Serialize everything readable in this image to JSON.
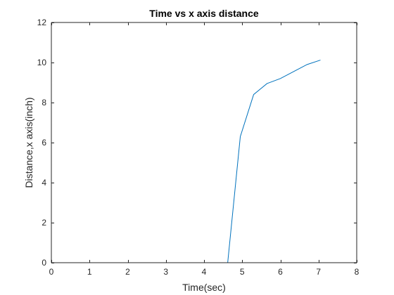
{
  "chart_data": {
    "type": "line",
    "title": "Time vs x axis distance",
    "xlabel": "Time(sec)",
    "ylabel": "Distance,x axis(inch)",
    "xlim": [
      0,
      8
    ],
    "ylim": [
      0,
      12
    ],
    "xticks": [
      0,
      1,
      2,
      3,
      4,
      5,
      6,
      7,
      8
    ],
    "yticks": [
      0,
      2,
      4,
      6,
      8,
      10,
      12
    ],
    "grid": false,
    "box": true,
    "series": [
      {
        "color": "#0072BD",
        "x": [
          0,
          4.62,
          4.95,
          5.3,
          5.65,
          6.0,
          6.35,
          6.7,
          7.05
        ],
        "y": [
          0,
          0,
          6.3,
          8.4,
          8.95,
          9.2,
          9.55,
          9.9,
          10.12
        ]
      }
    ]
  }
}
